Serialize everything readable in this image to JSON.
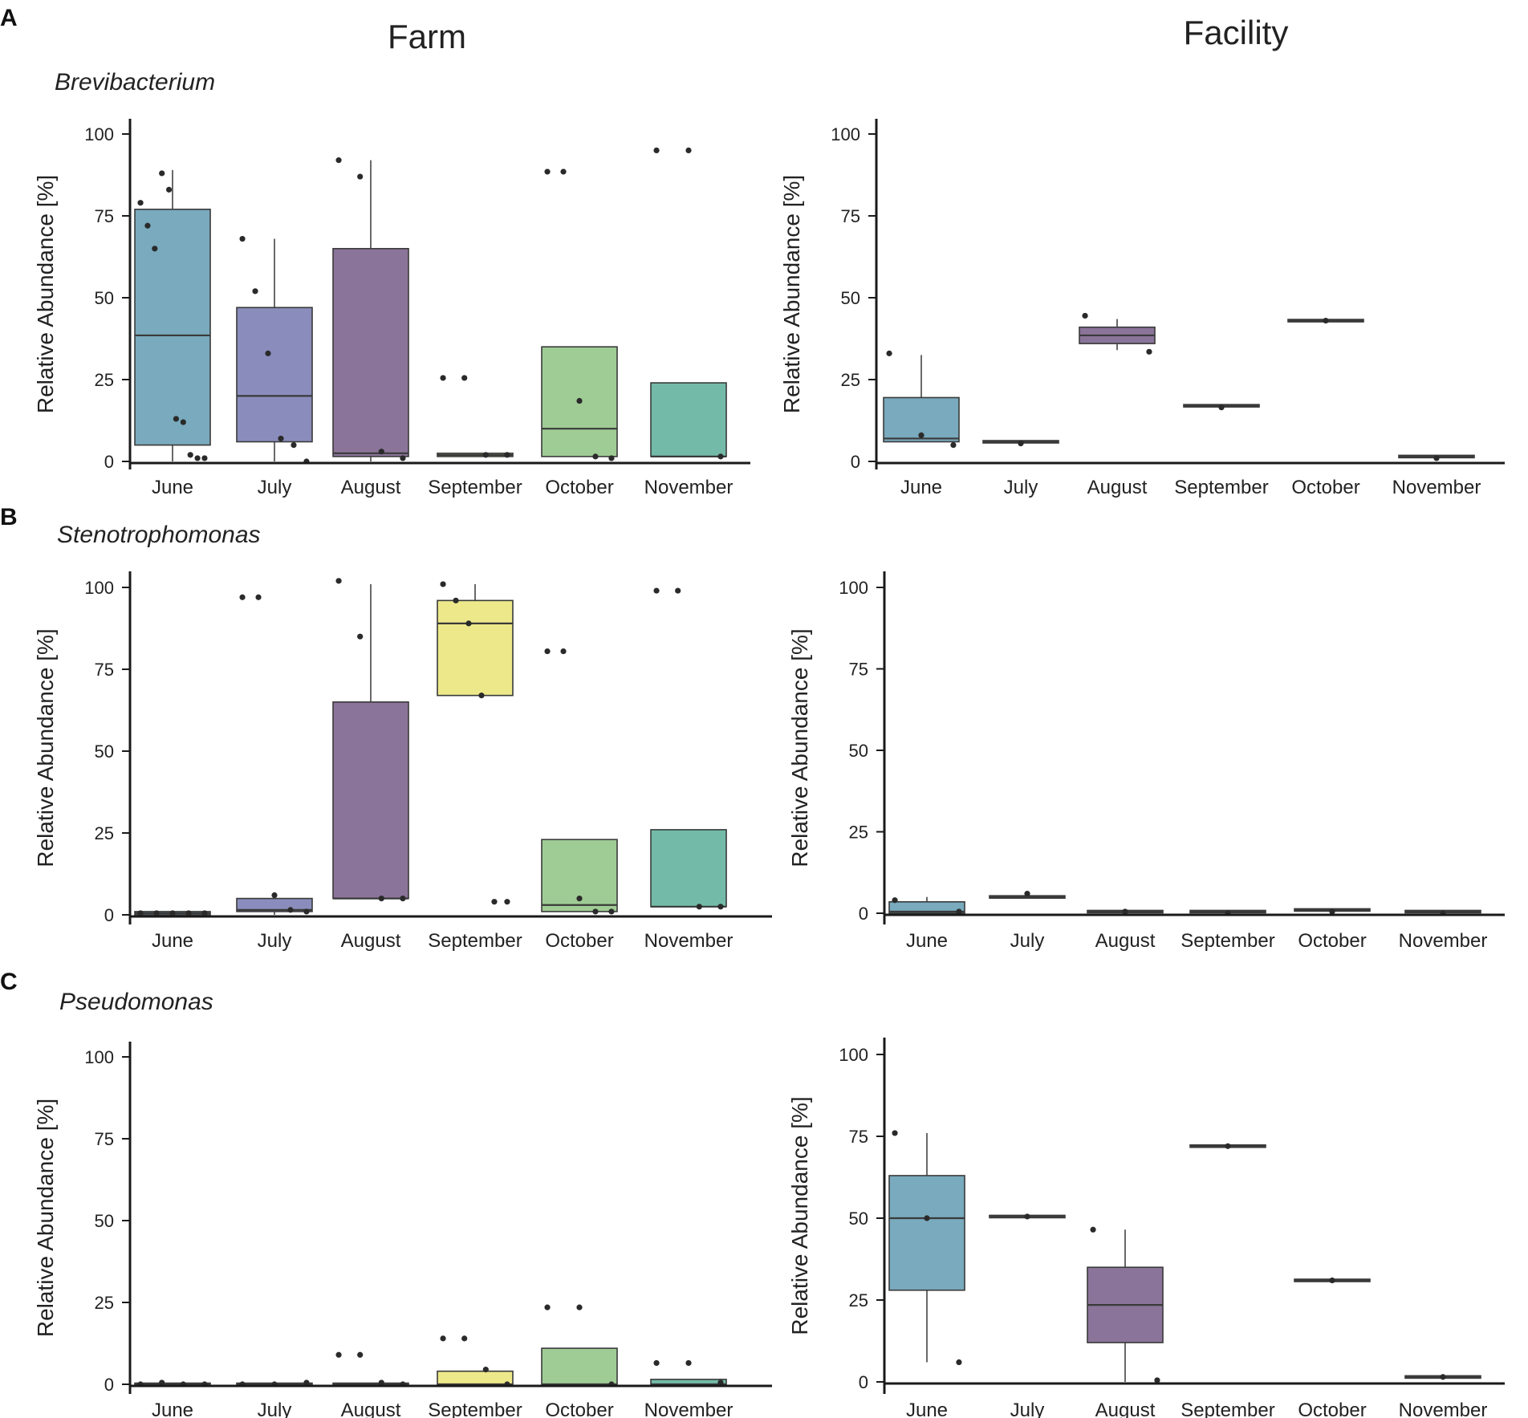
{
  "column_titles": {
    "farm": "Farm",
    "facility": "Facility"
  },
  "panel_letters": {
    "a": "A",
    "b": "B",
    "c": "C"
  },
  "genera": {
    "a": "Brevibacterium",
    "b": "Stenotrophomonas",
    "c": "Pseudomonas"
  },
  "axis": {
    "ylabel": "Relative Abundance [%]",
    "yticks": [
      "0",
      "25",
      "50",
      "75",
      "100"
    ],
    "months": [
      "June",
      "July",
      "August",
      "September",
      "October",
      "November"
    ]
  },
  "colors": {
    "June": "#79aabd",
    "July": "#8a8dbc",
    "August": "#8b7499",
    "September": "#ede98a",
    "October": "#9fcc95",
    "November": "#73bba8",
    "median": "#3a3a3a",
    "point": "#2a2a2a",
    "axis": "#1a1a1a"
  },
  "chart_data": [
    {
      "id": "brevibacterium-farm",
      "type": "box",
      "panel": "A",
      "genus": "Brevibacterium",
      "site": "Farm",
      "ylabel": "Relative Abundance [%]",
      "ylim": [
        0,
        100
      ],
      "yticks": [
        0,
        25,
        50,
        75,
        100
      ],
      "categories": [
        "June",
        "July",
        "August",
        "September",
        "October",
        "November"
      ],
      "boxes": [
        {
          "month": "June",
          "q1": 5,
          "median": 38.5,
          "q3": 77,
          "whisker_low": 0,
          "whisker_high": 89,
          "points": [
            79,
            72,
            65,
            88,
            83,
            13,
            12,
            2,
            1,
            1
          ]
        },
        {
          "month": "July",
          "q1": 6,
          "median": 20,
          "q3": 47,
          "whisker_low": 0,
          "whisker_high": 68,
          "points": [
            68,
            52,
            33,
            7,
            5,
            0
          ]
        },
        {
          "month": "August",
          "q1": 1.5,
          "median": 2.5,
          "q3": 65,
          "whisker_low": 0,
          "whisker_high": 92,
          "points": [
            92,
            87,
            3,
            1
          ]
        },
        {
          "month": "September",
          "q1": 1.5,
          "median": 2,
          "q3": 2.5,
          "whisker_low": 1.5,
          "whisker_high": 2.5,
          "points": [
            25.5,
            25.5,
            2,
            2
          ]
        },
        {
          "month": "October",
          "q1": 1.5,
          "median": 10,
          "q3": 35,
          "whisker_low": 1.5,
          "whisker_high": 35,
          "points": [
            88.5,
            88.5,
            18.5,
            1.5,
            1
          ]
        },
        {
          "month": "November",
          "q1": 1.5,
          "median": 1.5,
          "q3": 24,
          "whisker_low": 1.5,
          "whisker_high": 24,
          "points": [
            95,
            95,
            1.5
          ]
        }
      ]
    },
    {
      "id": "brevibacterium-facility",
      "type": "box",
      "panel": "A",
      "genus": "Brevibacterium",
      "site": "Facility",
      "ylabel": "Relative Abundance [%]",
      "ylim": [
        0,
        100
      ],
      "yticks": [
        0,
        25,
        50,
        75,
        100
      ],
      "categories": [
        "June",
        "July",
        "August",
        "September",
        "October",
        "November"
      ],
      "boxes": [
        {
          "month": "June",
          "q1": 6,
          "median": 7,
          "q3": 19.5,
          "whisker_low": 6,
          "whisker_high": 32.5,
          "points": [
            33,
            8,
            5
          ]
        },
        {
          "month": "July",
          "q1": 6,
          "median": 6,
          "q3": 6,
          "whisker_low": 6,
          "whisker_high": 6,
          "points": [
            5.5
          ]
        },
        {
          "month": "August",
          "q1": 36,
          "median": 38.5,
          "q3": 41,
          "whisker_low": 34,
          "whisker_high": 43.5,
          "points": [
            44.5,
            33.5
          ]
        },
        {
          "month": "September",
          "q1": 17,
          "median": 17,
          "q3": 17,
          "whisker_low": 17,
          "whisker_high": 17,
          "points": [
            16.5
          ]
        },
        {
          "month": "October",
          "q1": 43,
          "median": 43,
          "q3": 43,
          "whisker_low": 43,
          "whisker_high": 43,
          "points": [
            43
          ]
        },
        {
          "month": "November",
          "q1": 1.5,
          "median": 1.5,
          "q3": 1.5,
          "whisker_low": 1.5,
          "whisker_high": 1.5,
          "points": [
            1
          ]
        }
      ]
    },
    {
      "id": "stenotrophomonas-farm",
      "type": "box",
      "panel": "B",
      "genus": "Stenotrophomonas",
      "site": "Farm",
      "ylabel": "Relative Abundance [%]",
      "ylim": [
        0,
        100
      ],
      "yticks": [
        0,
        25,
        50,
        75,
        100
      ],
      "categories": [
        "June",
        "July",
        "August",
        "September",
        "October",
        "November"
      ],
      "boxes": [
        {
          "month": "June",
          "q1": 0,
          "median": 0.5,
          "q3": 1,
          "whisker_low": 0,
          "whisker_high": 1,
          "points": [
            0.5,
            0.5,
            0.5,
            0.5,
            0.5
          ]
        },
        {
          "month": "July",
          "q1": 1,
          "median": 1.5,
          "q3": 5,
          "whisker_low": 0,
          "whisker_high": 5,
          "points": [
            97,
            97,
            6,
            1.5,
            1
          ]
        },
        {
          "month": "August",
          "q1": 5,
          "median": 5,
          "q3": 65,
          "whisker_low": 5,
          "whisker_high": 101,
          "points": [
            102,
            85,
            5,
            5
          ]
        },
        {
          "month": "September",
          "q1": 67,
          "median": 89,
          "q3": 96,
          "whisker_low": 67,
          "whisker_high": 101,
          "points": [
            101,
            96,
            89,
            67,
            4,
            4
          ]
        },
        {
          "month": "October",
          "q1": 1,
          "median": 3,
          "q3": 23,
          "whisker_low": 1,
          "whisker_high": 23,
          "points": [
            80.5,
            80.5,
            5,
            1,
            1
          ]
        },
        {
          "month": "November",
          "q1": 2.5,
          "median": 2.5,
          "q3": 26,
          "whisker_low": 2.5,
          "whisker_high": 26,
          "points": [
            99,
            99,
            2.5,
            2.5
          ]
        }
      ]
    },
    {
      "id": "stenotrophomonas-facility",
      "type": "box",
      "panel": "B",
      "genus": "Stenotrophomonas",
      "site": "Facility",
      "ylabel": "Relative Abundance [%]",
      "ylim": [
        0,
        100
      ],
      "yticks": [
        0,
        25,
        50,
        75,
        100
      ],
      "categories": [
        "June",
        "July",
        "August",
        "September",
        "October",
        "November"
      ],
      "boxes": [
        {
          "month": "June",
          "q1": 0,
          "median": 0.5,
          "q3": 3.5,
          "whisker_low": 0,
          "whisker_high": 5,
          "points": [
            4,
            0.5
          ]
        },
        {
          "month": "July",
          "q1": 5,
          "median": 5,
          "q3": 5,
          "whisker_low": 5,
          "whisker_high": 5,
          "points": [
            6
          ]
        },
        {
          "month": "August",
          "q1": 0.5,
          "median": 0.5,
          "q3": 0.5,
          "whisker_low": 0.5,
          "whisker_high": 0.5,
          "points": [
            0.5
          ]
        },
        {
          "month": "September",
          "q1": 0.5,
          "median": 0.5,
          "q3": 0.5,
          "whisker_low": 0.5,
          "whisker_high": 0.5,
          "points": [
            0
          ]
        },
        {
          "month": "October",
          "q1": 1,
          "median": 1,
          "q3": 1,
          "whisker_low": 1,
          "whisker_high": 1,
          "points": [
            0.5
          ]
        },
        {
          "month": "November",
          "q1": 0.5,
          "median": 0.5,
          "q3": 0.5,
          "whisker_low": 0.5,
          "whisker_high": 0.5,
          "points": [
            0
          ]
        }
      ]
    },
    {
      "id": "pseudomonas-farm",
      "type": "box",
      "panel": "C",
      "genus": "Pseudomonas",
      "site": "Farm",
      "ylabel": "Relative Abundance [%]",
      "ylim": [
        0,
        100
      ],
      "yticks": [
        0,
        25,
        50,
        75,
        100
      ],
      "categories": [
        "June",
        "July",
        "August",
        "September",
        "October",
        "November"
      ],
      "boxes": [
        {
          "month": "June",
          "q1": 0,
          "median": 0,
          "q3": 0,
          "whisker_low": 0,
          "whisker_high": 0,
          "points": [
            0,
            0.5,
            0,
            0
          ]
        },
        {
          "month": "July",
          "q1": 0,
          "median": 0,
          "q3": 0,
          "whisker_low": 0,
          "whisker_high": 0,
          "points": [
            0,
            0,
            0.5
          ]
        },
        {
          "month": "August",
          "q1": 0,
          "median": 0,
          "q3": 0,
          "whisker_low": 0,
          "whisker_high": 0,
          "points": [
            9,
            9,
            0.5,
            0
          ]
        },
        {
          "month": "September",
          "q1": 0,
          "median": 0,
          "q3": 4,
          "whisker_low": 0,
          "whisker_high": 4,
          "points": [
            14,
            14,
            4.5,
            0
          ]
        },
        {
          "month": "October",
          "q1": 0,
          "median": 0,
          "q3": 11,
          "whisker_low": 0,
          "whisker_high": 11,
          "points": [
            23.5,
            23.5,
            0
          ]
        },
        {
          "month": "November",
          "q1": 0,
          "median": 0,
          "q3": 1.5,
          "whisker_low": 0,
          "whisker_high": 1.5,
          "points": [
            6.5,
            6.5,
            0.5
          ]
        }
      ]
    },
    {
      "id": "pseudomonas-facility",
      "type": "box",
      "panel": "C",
      "genus": "Pseudomonas",
      "site": "Facility",
      "ylabel": "Relative Abundance [%]",
      "ylim": [
        0,
        100
      ],
      "yticks": [
        0,
        25,
        50,
        75,
        100
      ],
      "categories": [
        "June",
        "July",
        "August",
        "September",
        "October",
        "November"
      ],
      "boxes": [
        {
          "month": "June",
          "q1": 28,
          "median": 50,
          "q3": 63,
          "whisker_low": 6,
          "whisker_high": 76,
          "points": [
            76,
            50,
            6
          ]
        },
        {
          "month": "July",
          "q1": 50.5,
          "median": 50.5,
          "q3": 50.5,
          "whisker_low": 50.5,
          "whisker_high": 50.5,
          "points": [
            50.5
          ]
        },
        {
          "month": "August",
          "q1": 12,
          "median": 23.5,
          "q3": 35,
          "whisker_low": 0,
          "whisker_high": 46.5,
          "points": [
            46.5,
            0.5
          ]
        },
        {
          "month": "September",
          "q1": 72,
          "median": 72,
          "q3": 72,
          "whisker_low": 72,
          "whisker_high": 72,
          "points": [
            72
          ]
        },
        {
          "month": "October",
          "q1": 31,
          "median": 31,
          "q3": 31,
          "whisker_low": 31,
          "whisker_high": 31,
          "points": [
            31
          ]
        },
        {
          "month": "November",
          "q1": 1.5,
          "median": 1.5,
          "q3": 1.5,
          "whisker_low": 1.5,
          "whisker_high": 1.5,
          "points": [
            1.5
          ]
        }
      ]
    }
  ]
}
